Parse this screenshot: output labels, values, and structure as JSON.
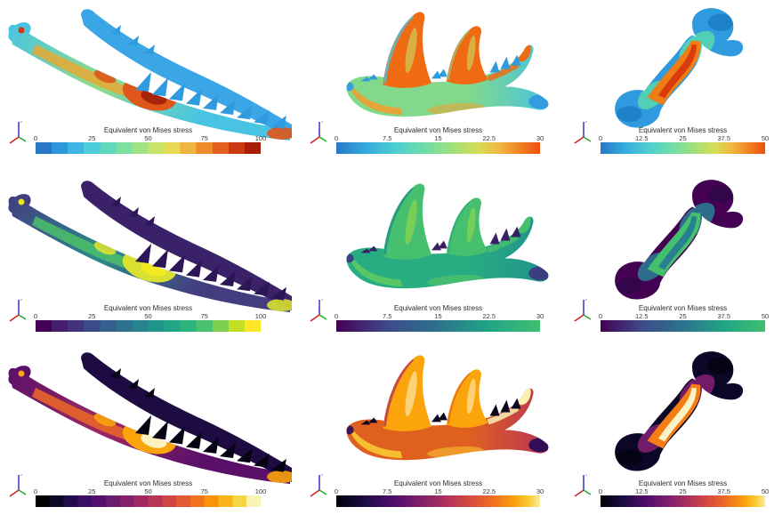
{
  "legend": {
    "title": "Equivalent von Mises stress",
    "footnote": "···  ·  ··  ····  ···"
  },
  "axes_triad": {
    "x_color": "#cc2222",
    "y_color": "#22aa22",
    "z_color": "#3333cc",
    "z_label": "z"
  },
  "columns": [
    {
      "id": "crocodylian-mandible",
      "name": "crocodylian mandible",
      "ticks": [
        "0",
        "25",
        "50",
        "75",
        "100"
      ],
      "range": [
        0,
        100
      ]
    },
    {
      "id": "carnivoran-mandible",
      "name": "carnivoran mandible",
      "ticks": [
        "0",
        "7.5",
        "15",
        "22.5",
        "30"
      ],
      "range": [
        0,
        30
      ]
    },
    {
      "id": "long-bone",
      "name": "long bone (femur)",
      "ticks": [
        "0",
        "12.5",
        "25",
        "37.5",
        "50"
      ],
      "range": [
        0,
        50
      ]
    }
  ],
  "rows": [
    {
      "id": "rainbow",
      "colormap": "blue-to-red rainbow",
      "left_bands": [
        "#2878c8",
        "#2e96dc",
        "#3cb4e6",
        "#4cccdc",
        "#60d8bc",
        "#7ce0a0",
        "#a0e384",
        "#c8e468",
        "#e8d852",
        "#f0b440",
        "#ee8c2c",
        "#e0601c",
        "#cc3812",
        "#a81e08"
      ],
      "smooth": [
        [
          0,
          "#2878c8"
        ],
        [
          0.15,
          "#35acdf"
        ],
        [
          0.3,
          "#4ed0cf"
        ],
        [
          0.45,
          "#74dda2"
        ],
        [
          0.58,
          "#a5e077"
        ],
        [
          0.7,
          "#d8dc55"
        ],
        [
          0.8,
          "#f0b83e"
        ],
        [
          0.9,
          "#ef8224"
        ],
        [
          1,
          "#f04f0e"
        ]
      ],
      "palettes": {
        "croc": {
          "upper": "#3aa6e6",
          "lowerA": "#48c4e2",
          "lowerB": "#90dc8a",
          "streak": "#e8a832",
          "hot": "#e05518",
          "hotCore": "#a82408",
          "teeth": "#309ade",
          "snoutHot": "#d93010"
        },
        "cat": {
          "bodyA": "#82d98c",
          "bodyB": "#48c2de",
          "finHot": "#f06a14",
          "finStreak": "#c8e060",
          "teeth": "#309ade",
          "canineHot": "#f06a14",
          "bottomStreak": "#f0a030",
          "rear": "#309ade"
        },
        "femur": {
          "end": "#2f9ade",
          "endDark": "#1b7ec6",
          "trans": "#54d2b2",
          "shaft": "#ee7d16",
          "core": "#d83c0c"
        }
      }
    },
    {
      "id": "viridis",
      "colormap": "viridis",
      "left_bands": [
        "#440154",
        "#471d6e",
        "#45327e",
        "#3d4a8a",
        "#355f8d",
        "#2d718e",
        "#27838e",
        "#22958b",
        "#21a585",
        "#2db47c",
        "#4ac16d",
        "#7ed04f",
        "#c2df23",
        "#fde725"
      ],
      "smooth": [
        [
          0,
          "#440154"
        ],
        [
          0.25,
          "#3e4a89"
        ],
        [
          0.5,
          "#2c728e"
        ],
        [
          0.75,
          "#21a585"
        ],
        [
          1,
          "#40bf71"
        ]
      ],
      "palettes": {
        "croc": {
          "upper": "#3a2168",
          "lowerA": "#433d80",
          "lowerB": "#2b8a8a",
          "streak": "#4cc06a",
          "hot": "#d8e030",
          "hotCore": "#f4ea22",
          "teeth": "#2c1656",
          "snoutHot": "#e8e41e"
        },
        "cat": {
          "bodyA": "#27ad81",
          "bodyB": "#21918c",
          "finHot": "#46c06e",
          "finStreak": "#9ad84a",
          "teeth": "#3b1f63",
          "canineHot": "#46c06e",
          "bottomStreak": "#5ec962",
          "rear": "#3c3a7e"
        },
        "femur": {
          "end": "#440154",
          "endDark": "#30074a",
          "trans": "#2c728e",
          "shaft": "#44bf70",
          "core": "#27808e"
        }
      }
    },
    {
      "id": "inferno",
      "colormap": "inferno / black-body",
      "left_bands": [
        "#000004",
        "#0c0826",
        "#230c4c",
        "#3b0f63",
        "#530f6d",
        "#6c1a6e",
        "#85216a",
        "#9f2a63",
        "#b73557",
        "#cf4446",
        "#e35933",
        "#f1731d",
        "#fa930a",
        "#fbb41a",
        "#f5d645",
        "#fcf3b7"
      ],
      "smooth": [
        [
          0,
          "#000004"
        ],
        [
          0.14,
          "#1c0c45"
        ],
        [
          0.28,
          "#4f0d6c"
        ],
        [
          0.42,
          "#81206c"
        ],
        [
          0.55,
          "#b23458"
        ],
        [
          0.68,
          "#dd513a"
        ],
        [
          0.79,
          "#f3771c"
        ],
        [
          0.88,
          "#fba40b"
        ],
        [
          0.95,
          "#f8cf3a"
        ],
        [
          1,
          "#fbeda1"
        ]
      ],
      "palettes": {
        "croc": {
          "upper": "#1e0b42",
          "lowerA": "#5a1069",
          "lowerB": "#9c2964",
          "streak": "#ed6925",
          "hot": "#fba40b",
          "hotCore": "#fcf2c0",
          "teeth": "#070313",
          "snoutHot": "#fba40b"
        },
        "cat": {
          "bodyA": "#e06020",
          "bodyB": "#b73557",
          "finHot": "#fba40b",
          "finStreak": "#fcf2c0",
          "teeth": "#0a0620",
          "canineHot": "#fcf0b0",
          "bottomStreak": "#f9c932",
          "rear": "#2c0b57"
        },
        "femur": {
          "end": "#0b0726",
          "endDark": "#040210",
          "trans": "#781c6d",
          "shaft": "#f57d15",
          "core": "#fcf3c4"
        }
      }
    }
  ],
  "chart_data": [
    {
      "type": "heatmap",
      "render": "3D FEA surface stress map",
      "specimen": "crocodylian mandible",
      "quantity": "Equivalent von Mises stress",
      "colormap": "blue-to-red rainbow (banded)",
      "colorbar_range": [
        0,
        100
      ],
      "colorbar_ticks": [
        0,
        25,
        50,
        75,
        100
      ]
    },
    {
      "type": "heatmap",
      "render": "3D FEA surface stress map",
      "specimen": "carnivoran mandible",
      "quantity": "Equivalent von Mises stress",
      "colormap": "blue-to-red rainbow (smooth)",
      "colorbar_range": [
        0,
        30
      ],
      "colorbar_ticks": [
        0,
        7.5,
        15,
        22.5,
        30
      ]
    },
    {
      "type": "heatmap",
      "render": "3D FEA surface stress map",
      "specimen": "long bone (femur)",
      "quantity": "Equivalent von Mises stress",
      "colormap": "blue-to-red rainbow (smooth)",
      "colorbar_range": [
        0,
        50
      ],
      "colorbar_ticks": [
        0,
        12.5,
        25,
        37.5,
        50
      ]
    },
    {
      "type": "heatmap",
      "render": "3D FEA surface stress map",
      "specimen": "crocodylian mandible",
      "quantity": "Equivalent von Mises stress",
      "colormap": "viridis (banded)",
      "colorbar_range": [
        0,
        100
      ],
      "colorbar_ticks": [
        0,
        25,
        50,
        75,
        100
      ]
    },
    {
      "type": "heatmap",
      "render": "3D FEA surface stress map",
      "specimen": "carnivoran mandible",
      "quantity": "Equivalent von Mises stress",
      "colormap": "viridis (smooth)",
      "colorbar_range": [
        0,
        30
      ],
      "colorbar_ticks": [
        0,
        7.5,
        15,
        22.5,
        30
      ]
    },
    {
      "type": "heatmap",
      "render": "3D FEA surface stress map",
      "specimen": "long bone (femur)",
      "quantity": "Equivalent von Mises stress",
      "colormap": "viridis (smooth)",
      "colorbar_range": [
        0,
        50
      ],
      "colorbar_ticks": [
        0,
        12.5,
        25,
        37.5,
        50
      ]
    },
    {
      "type": "heatmap",
      "render": "3D FEA surface stress map",
      "specimen": "crocodylian mandible",
      "quantity": "Equivalent von Mises stress",
      "colormap": "inferno / black-body (banded)",
      "colorbar_range": [
        0,
        100
      ],
      "colorbar_ticks": [
        0,
        25,
        50,
        75,
        100
      ]
    },
    {
      "type": "heatmap",
      "render": "3D FEA surface stress map",
      "specimen": "carnivoran mandible",
      "quantity": "Equivalent von Mises stress",
      "colormap": "inferno / black-body (smooth)",
      "colorbar_range": [
        0,
        30
      ],
      "colorbar_ticks": [
        0,
        7.5,
        15,
        22.5,
        30
      ]
    },
    {
      "type": "heatmap",
      "render": "3D FEA surface stress map",
      "specimen": "long bone (femur)",
      "quantity": "Equivalent von Mises stress",
      "colormap": "inferno / black-body (smooth)",
      "colorbar_range": [
        0,
        50
      ],
      "colorbar_ticks": [
        0,
        12.5,
        25,
        37.5,
        50
      ]
    }
  ]
}
